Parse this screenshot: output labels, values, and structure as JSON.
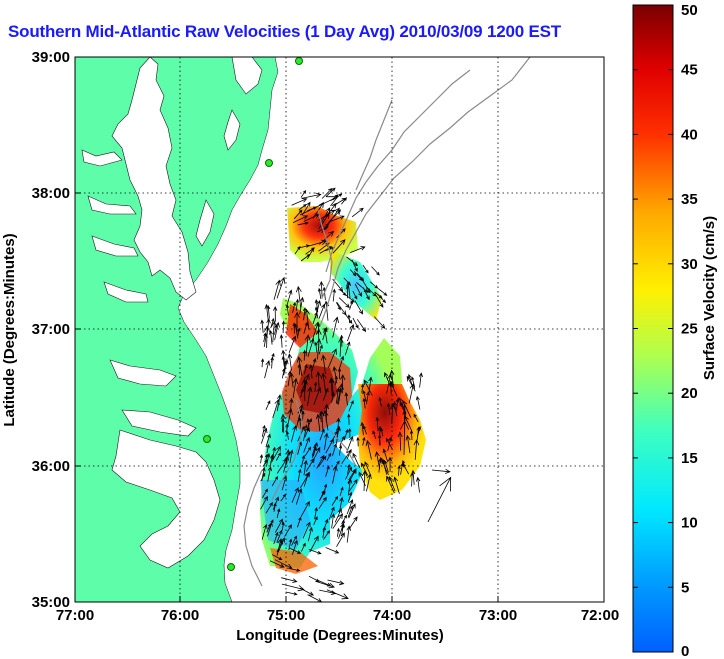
{
  "title": "Southern Mid-Atlantic Raw Velocities (1 Day Avg) 2010/03/09 1200 EST",
  "map": {
    "xlabel": "Longitude (Degrees:Minutes)",
    "ylabel": "Latitude (Degrees:Minutes)",
    "x_ticks": [
      "77:00",
      "76:00",
      "75:00",
      "74:00",
      "73:00",
      "72:00"
    ],
    "y_ticks": [
      "39:00",
      "38:00",
      "37:00",
      "36:00",
      "35:00"
    ],
    "land_color": "#5dfdaa",
    "water_color": "#ffffff",
    "bathymetry_color": "#8a8a8a",
    "station_color": "#2ee82e"
  },
  "colorbar": {
    "label": "Surface Velocity (cm/s)",
    "ticks": [
      "0",
      "5",
      "10",
      "15",
      "20",
      "25",
      "30",
      "35",
      "40",
      "45",
      "50"
    ],
    "min": 0,
    "max": 50
  }
}
